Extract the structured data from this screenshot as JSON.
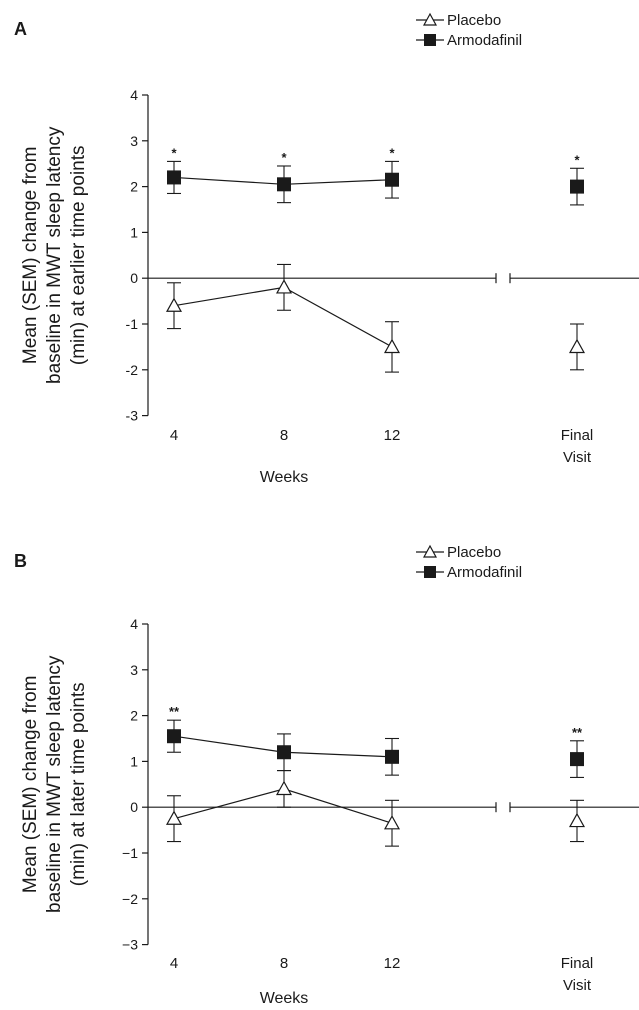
{
  "chart_data": [
    {
      "panel": "A",
      "type": "line",
      "ylabel": [
        "Mean (SEM) change from",
        "baseline in MWT sleep latency",
        "(min) at earlier time points"
      ],
      "xlabel": "Weeks",
      "ylim": [
        -3,
        4
      ],
      "yticks": [
        "4",
        "3",
        "2",
        "1",
        "0",
        "-1",
        "-2",
        "-3"
      ],
      "categories": [
        "4",
        "8",
        "12",
        "Final Visit"
      ],
      "category_lines": [
        [
          "4"
        ],
        [
          "8"
        ],
        [
          "12"
        ],
        [
          "Final",
          "Visit"
        ]
      ],
      "series": [
        {
          "name": "Placebo",
          "marker": "open-triangle",
          "values": [
            -0.6,
            -0.2,
            -1.5,
            -1.5
          ],
          "sem": [
            0.5,
            0.5,
            0.55,
            0.5
          ],
          "stars": [
            "",
            "",
            "",
            ""
          ]
        },
        {
          "name": "Armodafinil",
          "marker": "filled-square",
          "values": [
            2.2,
            2.05,
            2.15,
            2.0
          ],
          "sem": [
            0.35,
            0.4,
            0.4,
            0.4
          ],
          "stars": [
            "*",
            "*",
            "*",
            "*"
          ]
        }
      ],
      "axis_break": true
    },
    {
      "panel": "B",
      "type": "line",
      "ylabel": [
        "Mean (SEM) change from",
        "baseline in MWT sleep latency",
        "(min) at later time points"
      ],
      "xlabel": "Weeks",
      "ylim": [
        -3,
        4
      ],
      "yticks": [
        "4",
        "3",
        "2",
        "1",
        "0",
        "−1",
        "−2",
        "−3"
      ],
      "categories": [
        "4",
        "8",
        "12",
        "Final Visit"
      ],
      "category_lines": [
        [
          "4"
        ],
        [
          "8"
        ],
        [
          "12"
        ],
        [
          "Final",
          "Visit"
        ]
      ],
      "series": [
        {
          "name": "Placebo",
          "marker": "open-triangle",
          "values": [
            -0.25,
            0.4,
            -0.35,
            -0.3
          ],
          "sem": [
            0.5,
            0.4,
            0.5,
            0.45
          ],
          "stars": [
            "",
            "",
            "",
            ""
          ]
        },
        {
          "name": "Armodafinil",
          "marker": "filled-square",
          "values": [
            1.55,
            1.2,
            1.1,
            1.05
          ],
          "sem": [
            0.35,
            0.4,
            0.4,
            0.4
          ],
          "stars": [
            "**",
            "",
            "",
            "**"
          ]
        }
      ],
      "axis_break": true
    }
  ]
}
